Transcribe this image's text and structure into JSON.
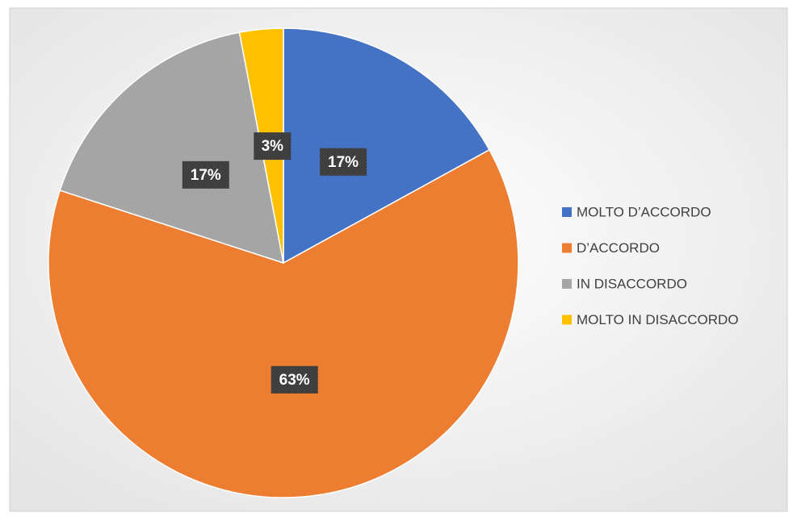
{
  "chart_data": {
    "type": "pie",
    "categories": [
      "MOLTO D’ACCORDO",
      "D’ACCORDO",
      "IN DISACCORDO",
      "MOLTO IN DISACCORDO"
    ],
    "values": [
      17,
      63,
      17,
      3
    ],
    "value_labels": [
      "17%",
      "63%",
      "17%",
      "3%"
    ],
    "colors": [
      "#4472c4",
      "#ed7d31",
      "#a5a5a5",
      "#ffc000"
    ],
    "legend": "right"
  }
}
